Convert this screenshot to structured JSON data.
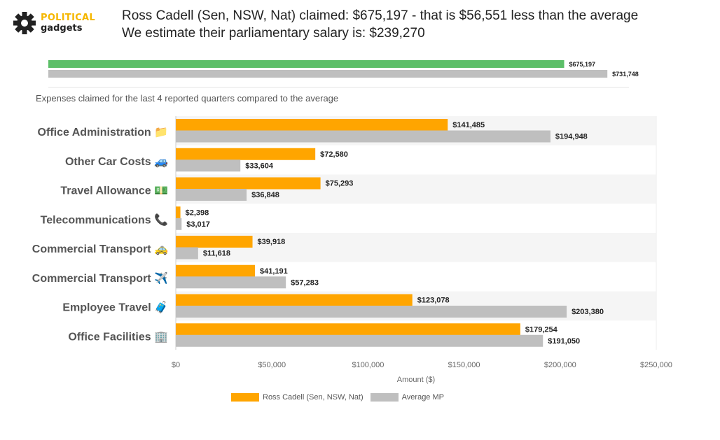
{
  "brand": {
    "line1": "POLITICAL",
    "line2": "gadgets"
  },
  "header": {
    "line1": "Ross Cadell (Sen, NSW, Nat) claimed: $675,197 - that is $56,551 less than the average",
    "line2": "We estimate their parliamentary salary is: $239,270"
  },
  "subtitle": "Expenses claimed for the last 4 reported quarters compared to the average",
  "colors": {
    "member": "#ffa500",
    "average": "#bfbfbf",
    "total_member": "#5cbf68",
    "stripe": "#f5f5f5"
  },
  "chart_data": [
    {
      "type": "bar",
      "orientation": "horizontal",
      "series": [
        {
          "values": [
            675197
          ],
          "labels": [
            "$675,197"
          ]
        },
        {
          "values": [
            731748
          ],
          "labels": [
            "$731,748"
          ]
        }
      ],
      "xlim": [
        0,
        760000
      ]
    },
    {
      "type": "bar",
      "orientation": "horizontal",
      "categories": [
        "Office Administration 📁",
        "Other Car Costs 🚙",
        "Travel Allowance 💵",
        "Telecommunications 📞",
        "Commercial Transport 🚕",
        "Commercial Transport ✈️",
        "Employee Travel 🧳",
        "Office Facilities 🏢"
      ],
      "series": [
        {
          "name": "Ross Cadell  (Sen, NSW, Nat)",
          "values": [
            141485,
            72580,
            75293,
            2398,
            39918,
            41191,
            123078,
            179254
          ],
          "labels": [
            "$141,485",
            "$72,580",
            "$75,293",
            "$2,398",
            "$39,918",
            "$41,191",
            "$123,078",
            "$179,254"
          ]
        },
        {
          "name": "Average MP",
          "values": [
            194948,
            33604,
            36848,
            3017,
            11618,
            57283,
            203380,
            191050
          ],
          "labels": [
            "$194,948",
            "$33,604",
            "$36,848",
            "$3,017",
            "$11,618",
            "$57,283",
            "$203,380",
            "$191,050"
          ]
        }
      ],
      "xlabel": "Amount ($)",
      "xlim": [
        0,
        250000
      ],
      "xticks": [
        "$0",
        "$50,000",
        "$100,000",
        "$150,000",
        "$200,000",
        "$250,000"
      ],
      "legend": "bottom-center",
      "grid": false
    }
  ]
}
